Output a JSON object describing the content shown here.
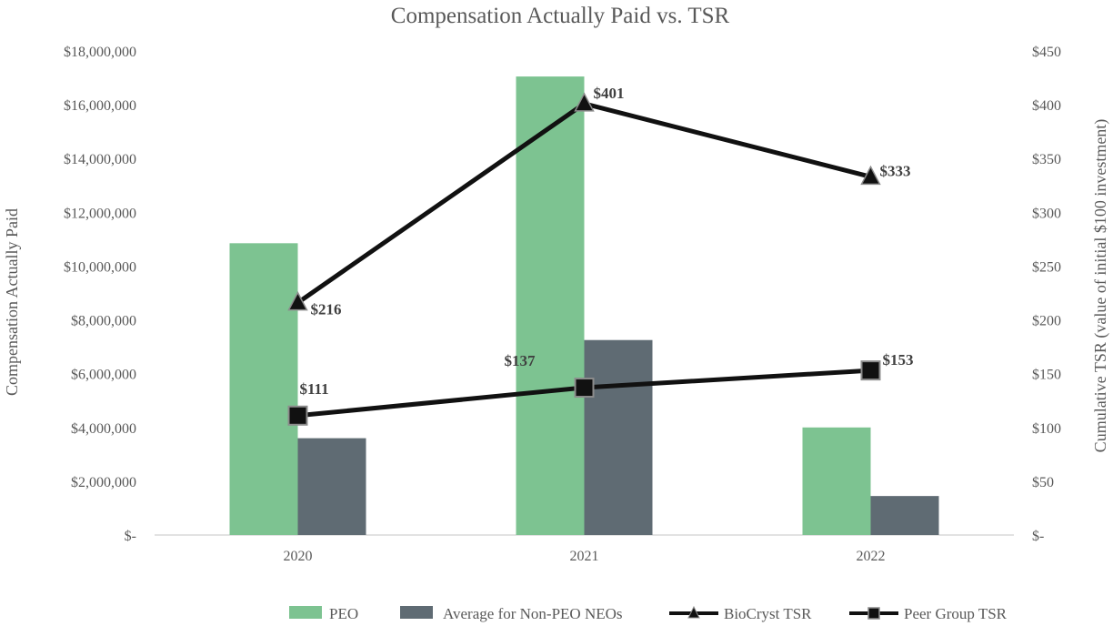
{
  "chart_data": {
    "type": "bar",
    "title": "Compensation Actually Paid vs. TSR",
    "categories": [
      "2020",
      "2021",
      "2022"
    ],
    "ylabel": "Compensation Actually Paid",
    "y2label": "Cumulative TSR (value of initial $100 investment)",
    "ylim": [
      0,
      18000000
    ],
    "y2lim": [
      0,
      450
    ],
    "yticks": [
      "$-",
      "$2,000,000",
      "$4,000,000",
      "$6,000,000",
      "$8,000,000",
      "$10,000,000",
      "$12,000,000",
      "$14,000,000",
      "$16,000,000",
      "$18,000,000"
    ],
    "y2ticks": [
      "$-",
      "$50",
      "$100",
      "$150",
      "$200",
      "$250",
      "$300",
      "$350",
      "$400",
      "$450"
    ],
    "bar_series": [
      {
        "name": "PEO",
        "color": "#7dc391",
        "values": [
          10850000,
          17050000,
          4000000
        ]
      },
      {
        "name": "Average for Non-PEO NEOs",
        "color": "#5f6b73",
        "values": [
          3600000,
          7250000,
          1450000
        ]
      }
    ],
    "line_series": [
      {
        "name": "BioCryst TSR",
        "marker": "triangle",
        "color": "#111111",
        "values": [
          216,
          401,
          333
        ],
        "labels": [
          "$216",
          "$401",
          "$333"
        ]
      },
      {
        "name": "Peer Group TSR",
        "marker": "square",
        "color": "#111111",
        "values": [
          111,
          137,
          153
        ],
        "labels": [
          "$111",
          "$137",
          "$153"
        ]
      }
    ],
    "grid": false,
    "legend_position": "bottom"
  }
}
